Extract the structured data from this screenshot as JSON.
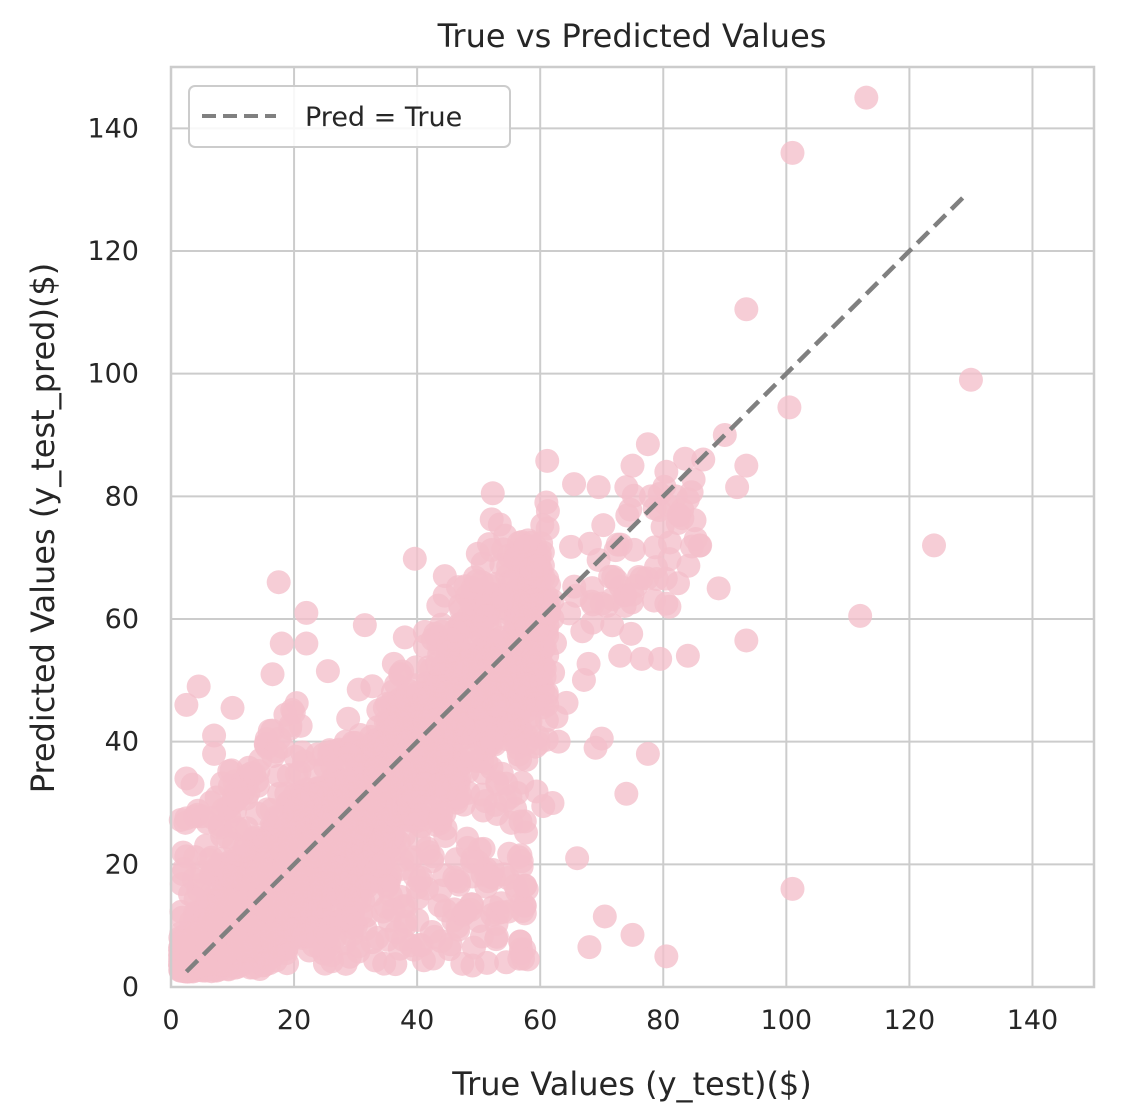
{
  "chart_data": {
    "type": "scatter",
    "title": "True vs Predicted Values",
    "xlabel": "True Values (y_test)($)",
    "ylabel": "Predicted Values (y_test_pred)($)",
    "xlim": [
      0,
      150
    ],
    "ylim": [
      0,
      150
    ],
    "x_ticks": [
      0,
      20,
      40,
      60,
      80,
      100,
      120,
      140
    ],
    "y_ticks": [
      0,
      20,
      40,
      60,
      80,
      100,
      120,
      140
    ],
    "grid": true,
    "legend": {
      "placement": "top-left",
      "entries": [
        "Pred = True"
      ]
    },
    "colors": {
      "points": "#f4bfcb",
      "reference_line": "#808080",
      "grid": "#cccccc"
    },
    "reference_line": {
      "label": "Pred = True",
      "x": [
        2.5,
        129
      ],
      "y": [
        2.5,
        129
      ],
      "style": "dashed"
    },
    "point_count_note": "dense cloud of several thousand points concentrated along the diagonal from 0 to 60",
    "outliers": [
      {
        "x": 113,
        "y": 145
      },
      {
        "x": 101,
        "y": 136
      },
      {
        "x": 93.5,
        "y": 110.5
      },
      {
        "x": 130,
        "y": 99
      },
      {
        "x": 100.5,
        "y": 94.5
      },
      {
        "x": 90,
        "y": 90
      },
      {
        "x": 93.5,
        "y": 85
      },
      {
        "x": 86.5,
        "y": 86
      },
      {
        "x": 92,
        "y": 81.5
      },
      {
        "x": 77.5,
        "y": 88.5
      },
      {
        "x": 75,
        "y": 85
      },
      {
        "x": 80.5,
        "y": 84
      },
      {
        "x": 124,
        "y": 72
      },
      {
        "x": 112,
        "y": 60.5
      },
      {
        "x": 93.5,
        "y": 56.5
      },
      {
        "x": 101,
        "y": 16
      },
      {
        "x": 89,
        "y": 65
      },
      {
        "x": 86,
        "y": 72
      },
      {
        "x": 84,
        "y": 54
      },
      {
        "x": 80.5,
        "y": 62.5
      },
      {
        "x": 77.5,
        "y": 38
      },
      {
        "x": 74,
        "y": 31.5
      },
      {
        "x": 70,
        "y": 40.5
      },
      {
        "x": 69,
        "y": 39
      },
      {
        "x": 66,
        "y": 21
      },
      {
        "x": 70.5,
        "y": 11.5
      },
      {
        "x": 75,
        "y": 8.5
      },
      {
        "x": 68,
        "y": 6.5
      },
      {
        "x": 80.5,
        "y": 5
      },
      {
        "x": 58,
        "y": 4.5
      },
      {
        "x": 62,
        "y": 30
      },
      {
        "x": 60.5,
        "y": 29.5
      },
      {
        "x": 57.5,
        "y": 27
      },
      {
        "x": 57,
        "y": 20.5
      },
      {
        "x": 57.5,
        "y": 16.5
      },
      {
        "x": 57.5,
        "y": 12
      },
      {
        "x": 46,
        "y": 48
      },
      {
        "x": 63,
        "y": 40
      },
      {
        "x": 17.5,
        "y": 66
      },
      {
        "x": 22,
        "y": 61
      },
      {
        "x": 31.5,
        "y": 59
      },
      {
        "x": 18,
        "y": 56
      },
      {
        "x": 22,
        "y": 56
      },
      {
        "x": 25.5,
        "y": 51.5
      },
      {
        "x": 16.5,
        "y": 51
      },
      {
        "x": 4.5,
        "y": 49
      },
      {
        "x": 2.5,
        "y": 46
      },
      {
        "x": 10,
        "y": 45.5
      },
      {
        "x": 7,
        "y": 41
      },
      {
        "x": 7,
        "y": 38
      },
      {
        "x": 14.5,
        "y": 37
      },
      {
        "x": 2.5,
        "y": 34
      },
      {
        "x": 3.5,
        "y": 33
      },
      {
        "x": 2.5,
        "y": 27.5
      },
      {
        "x": 44.5,
        "y": 67
      },
      {
        "x": 50.5,
        "y": 66
      },
      {
        "x": 38,
        "y": 57
      },
      {
        "x": 45,
        "y": 48
      },
      {
        "x": 62,
        "y": 63
      },
      {
        "x": 65.5,
        "y": 82
      },
      {
        "x": 61,
        "y": 79
      },
      {
        "x": 69.5,
        "y": 81.5
      },
      {
        "x": 74,
        "y": 81.5
      },
      {
        "x": 78,
        "y": 80
      },
      {
        "x": 82,
        "y": 80
      },
      {
        "x": 82.5,
        "y": 77
      },
      {
        "x": 75,
        "y": 64
      },
      {
        "x": 78.5,
        "y": 63
      },
      {
        "x": 81,
        "y": 62
      },
      {
        "x": 79.5,
        "y": 53.5
      },
      {
        "x": 76.5,
        "y": 53.5
      },
      {
        "x": 73,
        "y": 54
      },
      {
        "x": 70,
        "y": 62.5
      }
    ]
  }
}
